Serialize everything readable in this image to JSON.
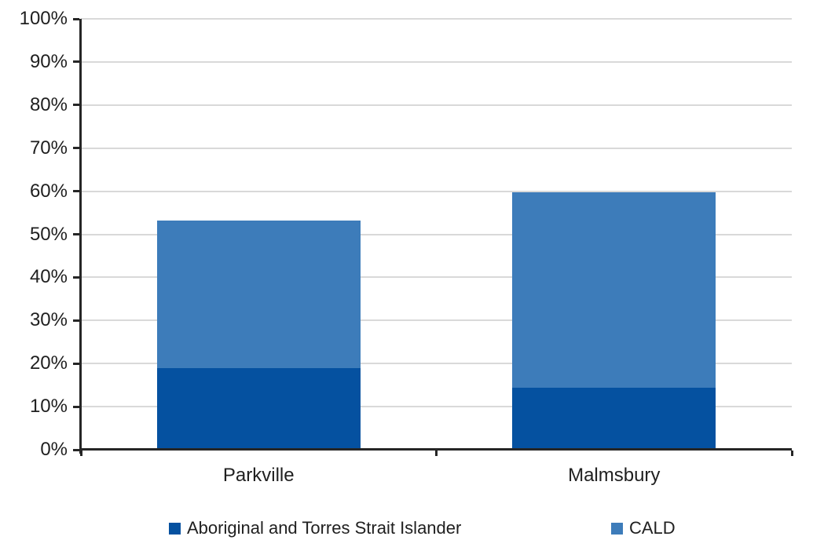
{
  "chart_data": {
    "type": "bar",
    "stacked": true,
    "title": "",
    "xlabel": "",
    "ylabel": "",
    "categories": [
      "Parkville",
      "Malmsbury"
    ],
    "series": [
      {
        "name": "Aboriginal and Torres Strait Islander",
        "color": "#0551A0",
        "values": [
          18.9,
          14.4
        ]
      },
      {
        "name": "CALD",
        "color": "#3D7CBA",
        "values": [
          34.3,
          45.4
        ]
      }
    ],
    "totals": [
      53.2,
      59.8
    ],
    "ylim": [
      0,
      100
    ],
    "ytick_step": 10,
    "ytick_labels": [
      "0%",
      "10%",
      "20%",
      "30%",
      "40%",
      "50%",
      "60%",
      "70%",
      "80%",
      "90%",
      "100%"
    ],
    "grid": "horizontal",
    "gridline_color": "#D9D9D9",
    "axis_color": "#262626",
    "text_color": "#1F1F1F",
    "legend_position": "bottom"
  }
}
